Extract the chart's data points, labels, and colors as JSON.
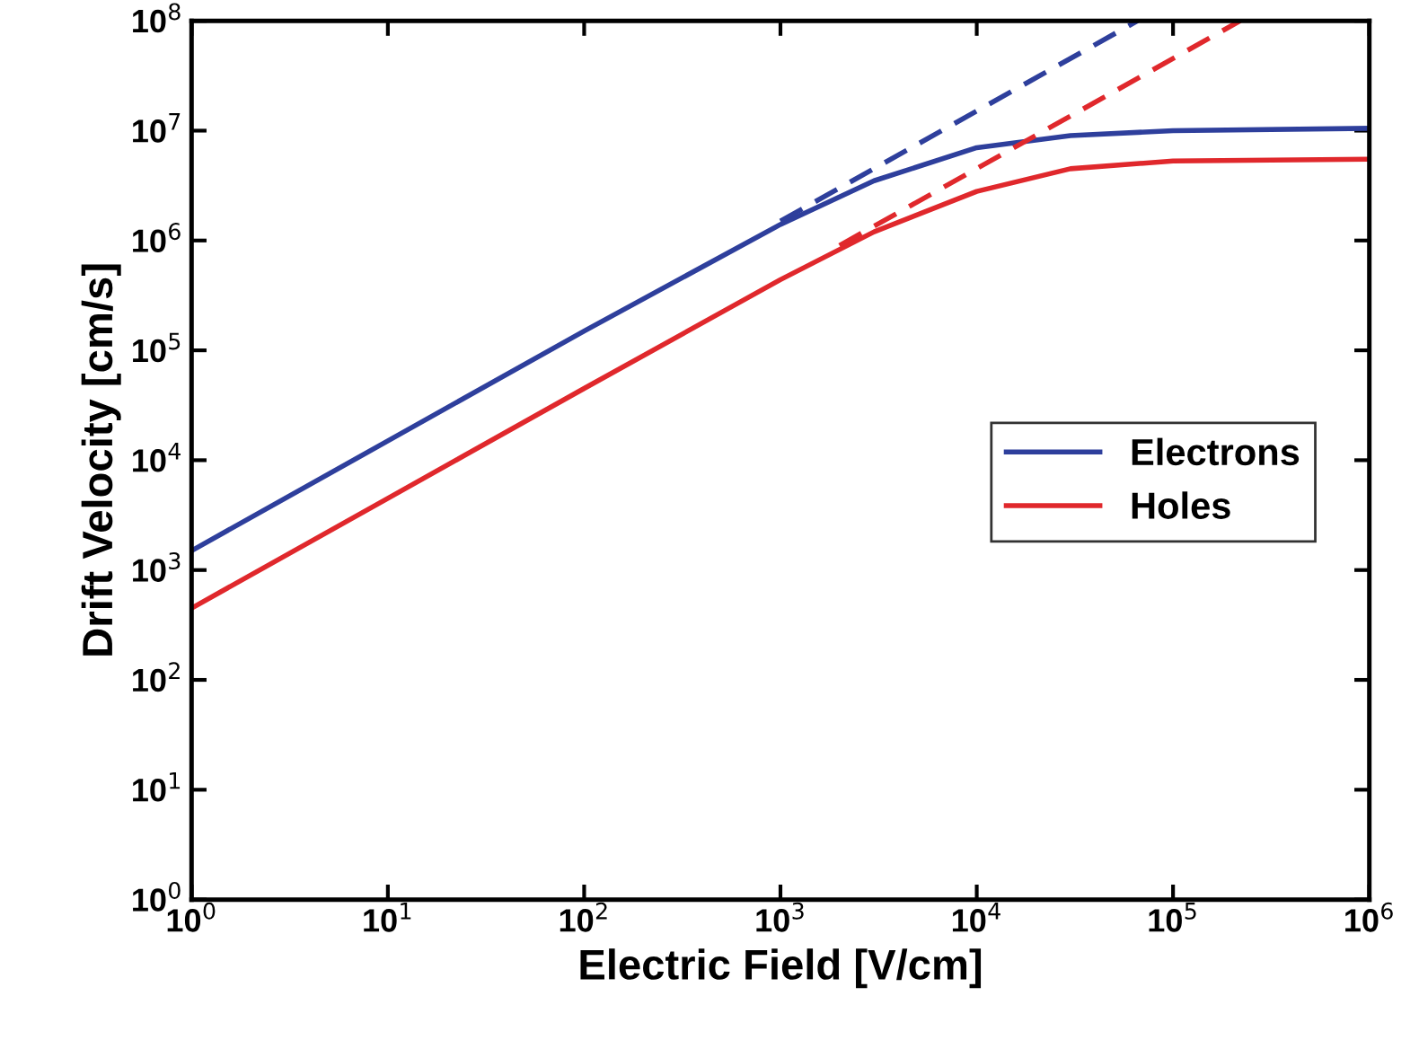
{
  "chart_data": {
    "type": "line",
    "xlabel": "Electric Field [V/cm]",
    "ylabel": "Drift Velocity [cm/s]",
    "log": "xy",
    "grid": false,
    "legend": "right",
    "marker": "none",
    "line_style": "solid",
    "xlim": [
      1,
      1000000
    ],
    "ylim": [
      1,
      100000000
    ],
    "xticks": [
      {
        "value": 1,
        "label": "10$^{0}$"
      },
      {
        "value": 10,
        "label": "10$^{1}$"
      },
      {
        "value": 100,
        "label": "10$^{2}$"
      },
      {
        "value": 1000,
        "label": "10$^{3}$"
      },
      {
        "value": 10000,
        "label": "10$^{4}$"
      },
      {
        "value": 100000,
        "label": "10$^{5}$"
      },
      {
        "value": 1000000,
        "label": "10$^{6}$"
      }
    ],
    "yticks": [
      {
        "value": 1,
        "label": "10$^{0}$"
      },
      {
        "value": 10,
        "label": "10$^{1}$"
      },
      {
        "value": 100,
        "label": "10$^{2}$"
      },
      {
        "value": 1000,
        "label": "10$^{3}$"
      },
      {
        "value": 10000,
        "label": "10$^{4}$"
      },
      {
        "value": 100000,
        "label": "10$^{5}$"
      },
      {
        "value": 1000000,
        "label": "10$^{6}$"
      },
      {
        "value": 10000000,
        "label": "10$^{7}$"
      },
      {
        "value": 100000000,
        "label": "10$^{8}$"
      }
    ],
    "series": [
      {
        "name": "Electrons",
        "color": "#2e3f9c",
        "x": [
          1,
          10,
          100,
          1000,
          3000,
          10000,
          30000,
          100000,
          1000000
        ],
        "values": [
          1500,
          15000,
          150000,
          1400000,
          3500000,
          7000000,
          9000000,
          10000000,
          10500000
        ]
      },
      {
        "name": "Holes",
        "color": "#e0282c",
        "x": [
          1,
          10,
          100,
          1000,
          3000,
          10000,
          30000,
          100000,
          1000000
        ],
        "values": [
          450,
          4500,
          45000,
          440000,
          1200000,
          2800000,
          4500000,
          5300000,
          5500000
        ]
      },
      {
        "color": "#2e3f9c",
        "line_style": "dashed",
        "x": [
          1000,
          66000
        ],
        "values": [
          1500000,
          100000000
        ]
      },
      {
        "color": "#e0282c",
        "line_style": "dashed",
        "x": [
          2000,
          220000
        ],
        "values": [
          900000,
          100000000
        ]
      }
    ]
  }
}
